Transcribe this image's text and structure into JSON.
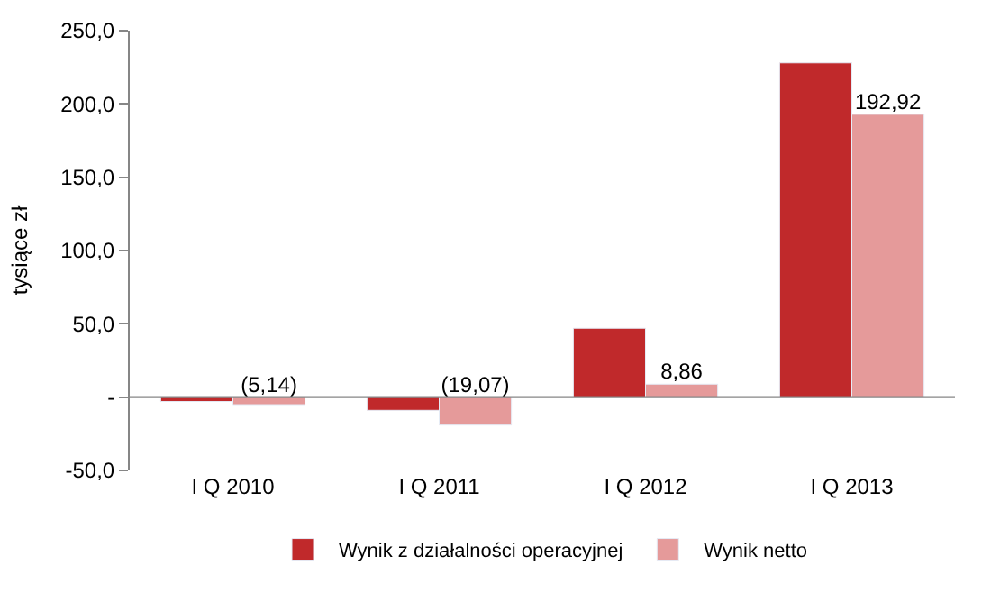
{
  "chart_data": {
    "type": "bar",
    "ylabel": "tysiące zł",
    "categories": [
      "I Q 2010",
      "I Q 2011",
      "I Q 2012",
      "I Q 2013"
    ],
    "series": [
      {
        "name": "Wynik z działalności operacyjnej",
        "color": "#c0292b",
        "values": [
          -3,
          -9,
          47,
          228
        ]
      },
      {
        "name": "Wynik netto",
        "color": "#e59a9a",
        "values": [
          -5.14,
          -19.07,
          8.86,
          192.92
        ],
        "value_labels": [
          "(5,14)",
          "(19,07)",
          "8,86",
          "192,92"
        ]
      }
    ],
    "ylim": [
      -50,
      250
    ],
    "yticks": [
      {
        "value": -50,
        "label": "-50,0"
      },
      {
        "value": 0,
        "label": "-"
      },
      {
        "value": 50,
        "label": "50,0"
      },
      {
        "value": 100,
        "label": "100,0"
      },
      {
        "value": 150,
        "label": "150,0"
      },
      {
        "value": 200,
        "label": "200,0"
      },
      {
        "value": 250,
        "label": "250,0"
      }
    ],
    "ref_lines": [
      {
        "axis": "y",
        "value": 0,
        "color": "#868686"
      }
    ],
    "grid": false,
    "legend": "bottom"
  }
}
